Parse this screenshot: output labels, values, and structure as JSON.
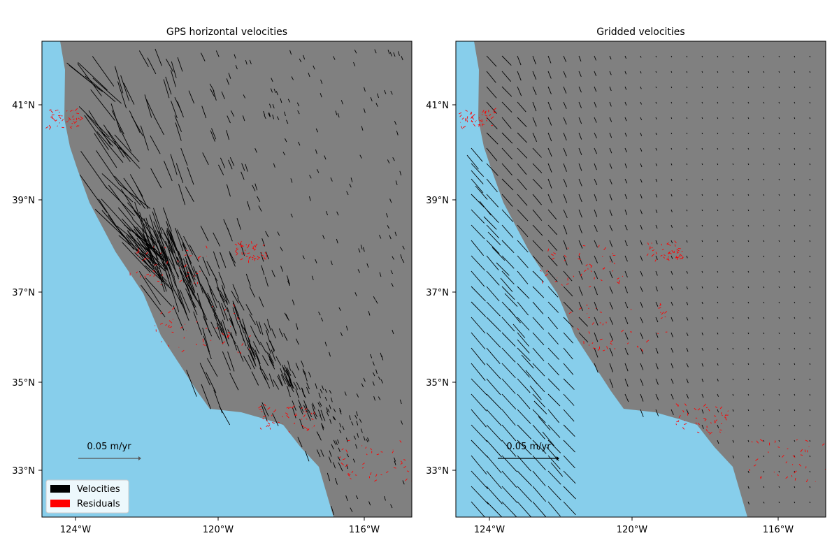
{
  "figure": {
    "colors": {
      "ocean": "#87ceeb",
      "land": "#808080",
      "velocity": "#000000",
      "residual": "#ff0000",
      "frame": "#000000"
    },
    "panels": [
      {
        "id": "left",
        "title": "GPS horizontal velocities",
        "lon_range": [
          -125,
          -115
        ],
        "lat_range": [
          32,
          42.3
        ],
        "xticks": [
          {
            "value": -124,
            "label": "124°W"
          },
          {
            "value": -120,
            "label": "120°W"
          },
          {
            "value": -116,
            "label": "116°W"
          }
        ],
        "yticks": [
          {
            "value": 33,
            "label": "33°N"
          },
          {
            "value": 35,
            "label": "35°N"
          },
          {
            "value": 37,
            "label": "37°N"
          },
          {
            "value": 39,
            "label": "39°N"
          },
          {
            "value": 41,
            "label": "41°N"
          }
        ],
        "scale_label": "0.05 m/yr",
        "legend": [
          {
            "label": "Velocities",
            "color": "#000000"
          },
          {
            "label": "Residuals",
            "color": "#ff0000"
          }
        ]
      },
      {
        "id": "right",
        "title": "Gridded velocities",
        "lon_range": [
          -125,
          -115
        ],
        "lat_range": [
          32,
          42.3
        ],
        "xticks": [
          {
            "value": -124,
            "label": "124°W"
          },
          {
            "value": -120,
            "label": "120°W"
          },
          {
            "value": -116,
            "label": "116°W"
          }
        ],
        "yticks": [
          {
            "value": 33,
            "label": "33°N"
          },
          {
            "value": 35,
            "label": "35°N"
          },
          {
            "value": 37,
            "label": "37°N"
          },
          {
            "value": 39,
            "label": "39°N"
          },
          {
            "value": 41,
            "label": "41°N"
          }
        ],
        "scale_label": "0.05 m/yr"
      }
    ]
  }
}
